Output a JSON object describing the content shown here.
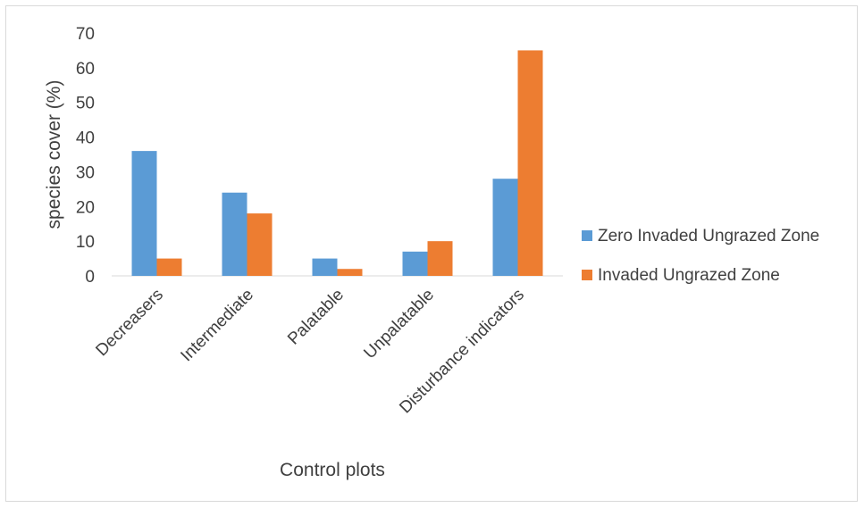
{
  "chart_data": {
    "type": "bar",
    "categories": [
      "Decreasers",
      "Intermediate",
      "Palatable",
      "Unpalatable",
      "Disturbance indicators"
    ],
    "series": [
      {
        "name": "Zero Invaded Ungrazed Zone",
        "values": [
          36,
          24,
          5,
          7,
          28
        ],
        "color": "#5b9bd5"
      },
      {
        "name": "Invaded Ungrazed Zone",
        "values": [
          5,
          18,
          2,
          10,
          65
        ],
        "color": "#ed7d31"
      }
    ],
    "title": "",
    "xlabel": "Control plots",
    "ylabel": "species cover (%)",
    "ylim": [
      0,
      70
    ],
    "yticks": [
      "0",
      "10",
      "20",
      "30",
      "40",
      "50",
      "60",
      "70"
    ],
    "grid": false,
    "legend_position": "right"
  }
}
